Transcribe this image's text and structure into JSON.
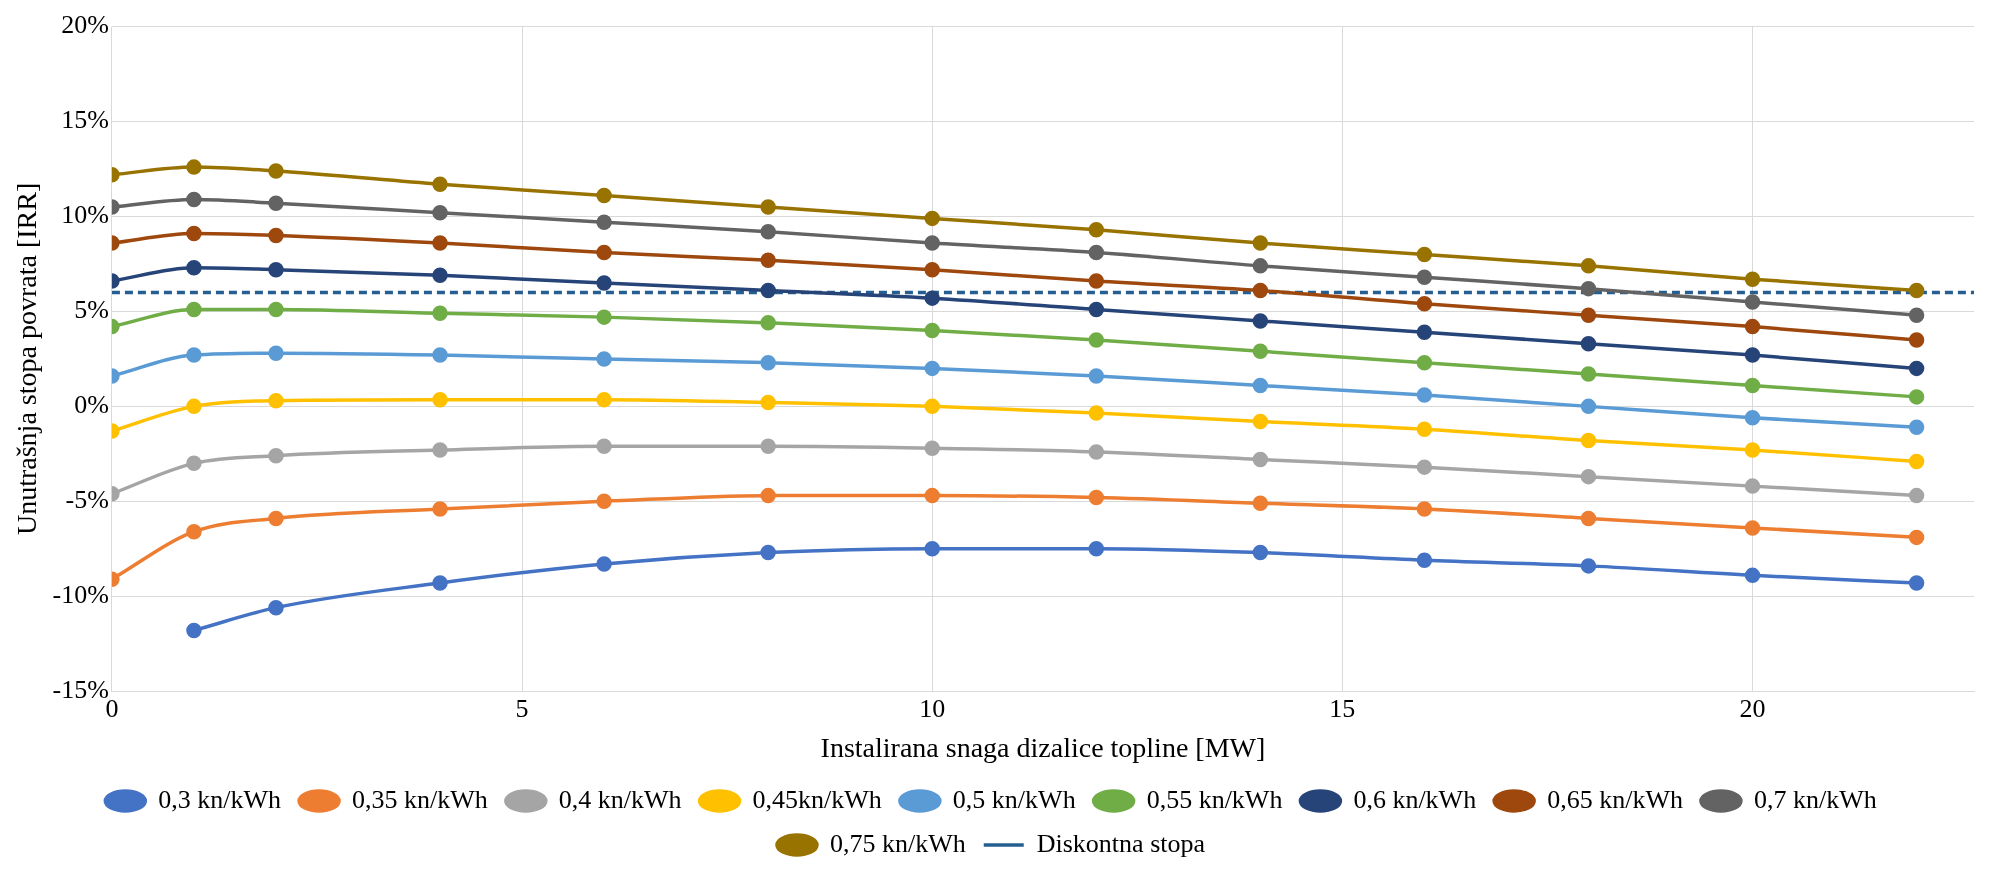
{
  "chart_data": {
    "type": "line",
    "xlabel": "Instalirana snaga dizalice topline [MW]",
    "ylabel": "Unutrašnja stopa povrata [IRR]",
    "x": [
      0,
      1,
      2,
      4,
      6,
      8,
      10,
      12,
      14,
      16,
      18,
      20,
      22
    ],
    "series": [
      {
        "name": "0,3 kn/kWh",
        "color": "#4472c4",
        "values": [
          null,
          -11.8,
          -10.6,
          -9.3,
          -8.3,
          -7.7,
          -7.5,
          -7.5,
          -7.7,
          -8.1,
          -8.4,
          -8.9,
          -9.3
        ]
      },
      {
        "name": "0,35 kn/kWh",
        "color": "#ed7d31",
        "values": [
          -9.1,
          -6.6,
          -5.9,
          -5.4,
          -5.0,
          -4.7,
          -4.7,
          -4.8,
          -5.1,
          -5.4,
          -5.9,
          -6.4,
          -6.9
        ]
      },
      {
        "name": "0,4 kn/kWh",
        "color": "#a5a5a5",
        "values": [
          -4.6,
          -3.0,
          -2.6,
          -2.3,
          -2.1,
          -2.1,
          -2.2,
          -2.4,
          -2.8,
          -3.2,
          -3.7,
          -4.2,
          -4.7
        ]
      },
      {
        "name": "0,45kn/kWh",
        "color": "#ffc000",
        "values": [
          -1.3,
          0.0,
          0.3,
          0.35,
          0.35,
          0.2,
          0.0,
          -0.35,
          -0.8,
          -1.2,
          -1.8,
          -2.3,
          -2.9
        ]
      },
      {
        "name": "0,5 kn/kWh",
        "color": "#5b9bd5",
        "values": [
          1.6,
          2.7,
          2.8,
          2.7,
          2.5,
          2.3,
          2.0,
          1.6,
          1.1,
          0.6,
          0.0,
          -0.6,
          -1.1
        ]
      },
      {
        "name": "0,55 kn/kWh",
        "color": "#70ad47",
        "values": [
          4.2,
          5.1,
          5.1,
          4.9,
          4.7,
          4.4,
          4.0,
          3.5,
          2.9,
          2.3,
          1.7,
          1.1,
          0.5
        ]
      },
      {
        "name": "0,6 kn/kWh",
        "color": "#264478",
        "values": [
          6.6,
          7.3,
          7.2,
          6.9,
          6.5,
          6.1,
          5.7,
          5.1,
          4.5,
          3.9,
          3.3,
          2.7,
          2.0
        ]
      },
      {
        "name": "0,65 kn/kWh",
        "color": "#9e480e",
        "values": [
          8.6,
          9.1,
          9.0,
          8.6,
          8.1,
          7.7,
          7.2,
          6.6,
          6.1,
          5.4,
          4.8,
          4.2,
          3.5
        ]
      },
      {
        "name": "0,7 kn/kWh",
        "color": "#636363",
        "values": [
          10.5,
          10.9,
          10.7,
          10.2,
          9.7,
          9.2,
          8.6,
          8.1,
          7.4,
          6.8,
          6.2,
          5.5,
          4.8
        ]
      },
      {
        "name": "0,75 kn/kWh",
        "color": "#997300",
        "values": [
          12.2,
          12.6,
          12.4,
          11.7,
          11.1,
          10.5,
          9.9,
          9.3,
          8.6,
          8.0,
          7.4,
          6.7,
          6.1
        ]
      },
      {
        "name": "Diskontna stopa",
        "color": "#255e91",
        "x": [
          0,
          22.7
        ],
        "values": [
          6,
          6
        ],
        "line_style": "dashed",
        "marker": "none"
      }
    ],
    "xlim": [
      0,
      22.7
    ],
    "xticks": [
      0,
      5,
      10,
      15,
      20
    ],
    "ylim": [
      -15,
      20
    ],
    "yticks": [
      {
        "value": -15,
        "label": "-15%"
      },
      {
        "value": -10,
        "label": "-10%"
      },
      {
        "value": -5,
        "label": "-5%"
      },
      {
        "value": 0,
        "label": "0%"
      },
      {
        "value": 5,
        "label": "5%"
      },
      {
        "value": 10,
        "label": "10%"
      },
      {
        "value": 15,
        "label": "15%"
      },
      {
        "value": 20,
        "label": "20%"
      }
    ],
    "grid": true,
    "legend": "bottom",
    "marker": "circle",
    "line_style": "solid"
  }
}
